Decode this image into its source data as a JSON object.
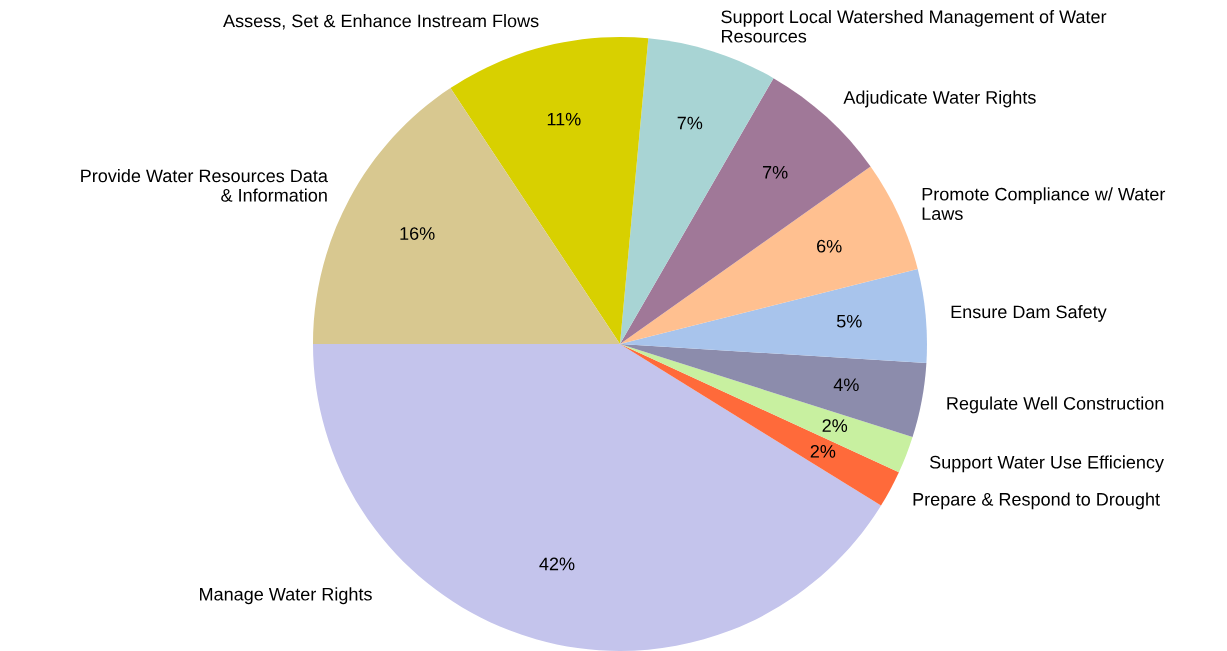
{
  "chart_data": {
    "type": "pie",
    "categories": [
      "Manage Water Rights",
      "Prepare & Respond to Drought",
      "Support Water Use Efficiency",
      "Regulate Well Construction",
      "Ensure Dam Safety",
      "Promote Compliance w/ Water\nLaws",
      "Adjudicate Water Rights",
      "Support Local Watershed Management of Water\nResources",
      "Assess, Set & Enhance Instream Flows",
      "Provide Water Resources Data\n & Information"
    ],
    "values": [
      42,
      2,
      2,
      4,
      5,
      6,
      7,
      7,
      11,
      16
    ],
    "value_labels": [
      "42%",
      "2%",
      "2%",
      "4%",
      "5%",
      "6%",
      "7%",
      "7%",
      "11%",
      "16%"
    ],
    "colors": [
      "#c4c4ec",
      "#ff6a3a",
      "#c8f0a0",
      "#8c8cac",
      "#a8c4ec",
      "#ffc090",
      "#a07898",
      "#a8d4d4",
      "#d8d000",
      "#d8c890"
    ]
  }
}
